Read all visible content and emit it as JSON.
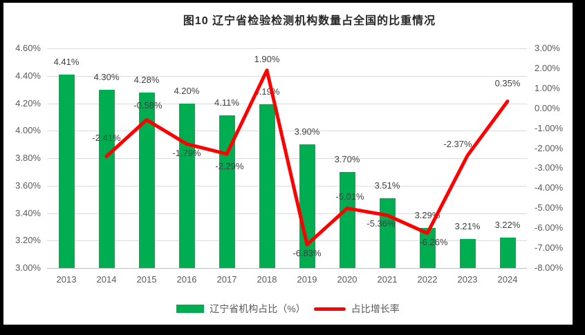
{
  "chart_data": {
    "type": "combo-bar-line",
    "title": "图10 辽宁省检验检测机构数量占全国的比重情况",
    "categories": [
      "2013",
      "2014",
      "2015",
      "2016",
      "2017",
      "2018",
      "2019",
      "2020",
      "2021",
      "2022",
      "2023",
      "2024"
    ],
    "series": [
      {
        "name": "辽宁省机构占比（%）",
        "type": "bar",
        "axis": "left",
        "color": "#00ad50",
        "values": [
          4.41,
          4.3,
          4.28,
          4.2,
          4.11,
          4.19,
          3.9,
          3.7,
          3.51,
          3.29,
          3.21,
          3.22
        ],
        "labels": [
          "4.41%",
          "4.30%",
          "4.28%",
          "4.20%",
          "4.11%",
          "4.19%",
          "3.90%",
          "3.70%",
          "3.51%",
          "3.29%",
          "3.21%",
          "3.22%"
        ]
      },
      {
        "name": "占比增长率",
        "type": "line",
        "axis": "right",
        "color": "#ff0000",
        "values": [
          null,
          -2.41,
          -0.58,
          -1.79,
          -2.29,
          1.9,
          -6.83,
          -5.01,
          -5.36,
          -6.26,
          -2.37,
          0.35
        ],
        "labels": [
          "",
          "-2.41%",
          "-0.58%",
          "-1.79%",
          "-2.29%",
          "1.90%",
          "-6.83%",
          "-5.01%",
          "-5.36%",
          "-6.26%",
          "-2.37%",
          "0.35%"
        ]
      }
    ],
    "left_axis": {
      "min": 3.0,
      "max": 4.6,
      "step": 0.2,
      "ticks": [
        "4.60%",
        "4.40%",
        "4.20%",
        "4.00%",
        "3.80%",
        "3.60%",
        "3.40%",
        "3.20%",
        "3.00%"
      ]
    },
    "right_axis": {
      "min": -8.0,
      "max": 3.0,
      "step": 1.0,
      "ticks": [
        "3.00%",
        "2.00%",
        "1.00%",
        "0.00%",
        "-1.00%",
        "-2.00%",
        "-3.00%",
        "-4.00%",
        "-5.00%",
        "-6.00%",
        "-7.00%",
        "-8.00%"
      ]
    },
    "grid": "horizontal",
    "legend_position": "bottom",
    "legend": [
      {
        "label": "辽宁省机构占比（%）",
        "swatch": "bar",
        "color": "#00ad50"
      },
      {
        "label": "占比增长率",
        "swatch": "line",
        "color": "#ff0000"
      }
    ],
    "line_label_offsets": [
      null,
      [
        0,
        -26
      ],
      [
        2,
        -20
      ],
      [
        0,
        14
      ],
      [
        4,
        18
      ],
      [
        0,
        -16
      ],
      [
        0,
        13
      ],
      [
        4,
        -17
      ],
      [
        -9,
        12
      ],
      [
        9,
        13
      ],
      [
        -14,
        -16
      ],
      [
        0,
        -26
      ]
    ]
  }
}
